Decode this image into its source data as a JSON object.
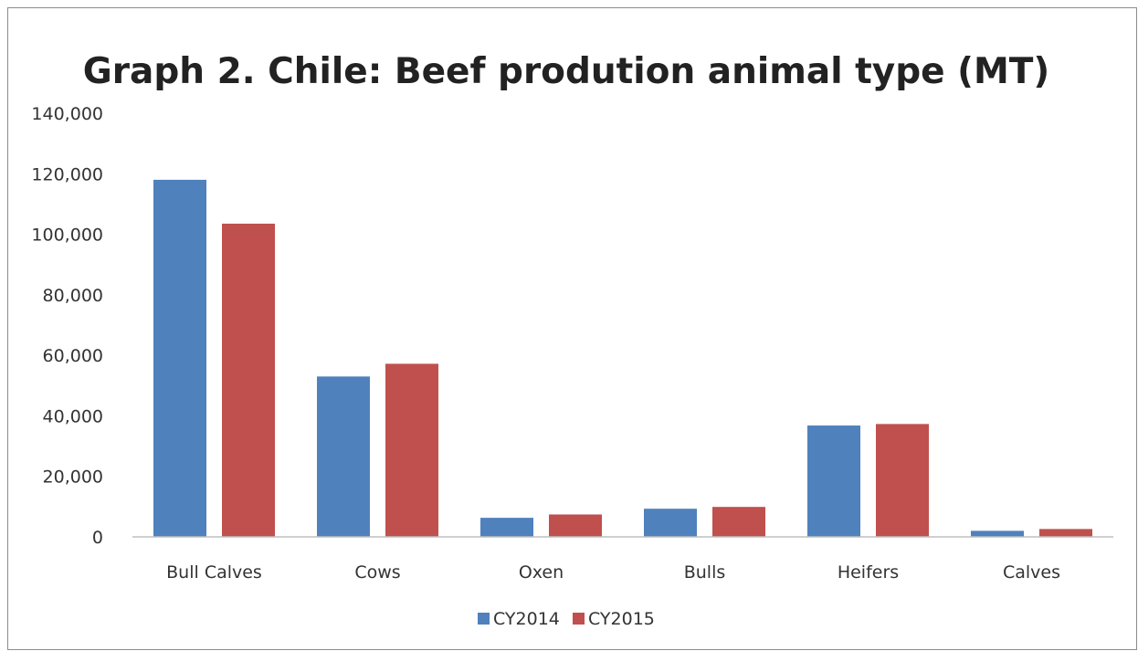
{
  "chart_data": {
    "type": "bar",
    "title": "Graph 2. Chile: Beef prodution animal type (MT)",
    "xlabel": "",
    "ylabel": "",
    "categories": [
      "Bull Calves",
      "Cows",
      "Oxen",
      "Bulls",
      "Heifers",
      "Calves"
    ],
    "series": [
      {
        "name": "CY2014",
        "color": "#4f81bd",
        "values": [
          118000,
          53000,
          6300,
          9300,
          36800,
          2000
        ]
      },
      {
        "name": "CY2015",
        "color": "#c0504d",
        "values": [
          103500,
          57200,
          7400,
          9900,
          37300,
          2600
        ]
      }
    ],
    "ylim": [
      0,
      140000
    ],
    "yticks": [
      0,
      20000,
      40000,
      60000,
      80000,
      100000,
      120000,
      140000
    ],
    "ytick_labels": [
      "0",
      "20,000",
      "40,000",
      "60,000",
      "80,000",
      "100,000",
      "120,000",
      "140,000"
    ],
    "grid": false,
    "legend_position": "bottom"
  }
}
